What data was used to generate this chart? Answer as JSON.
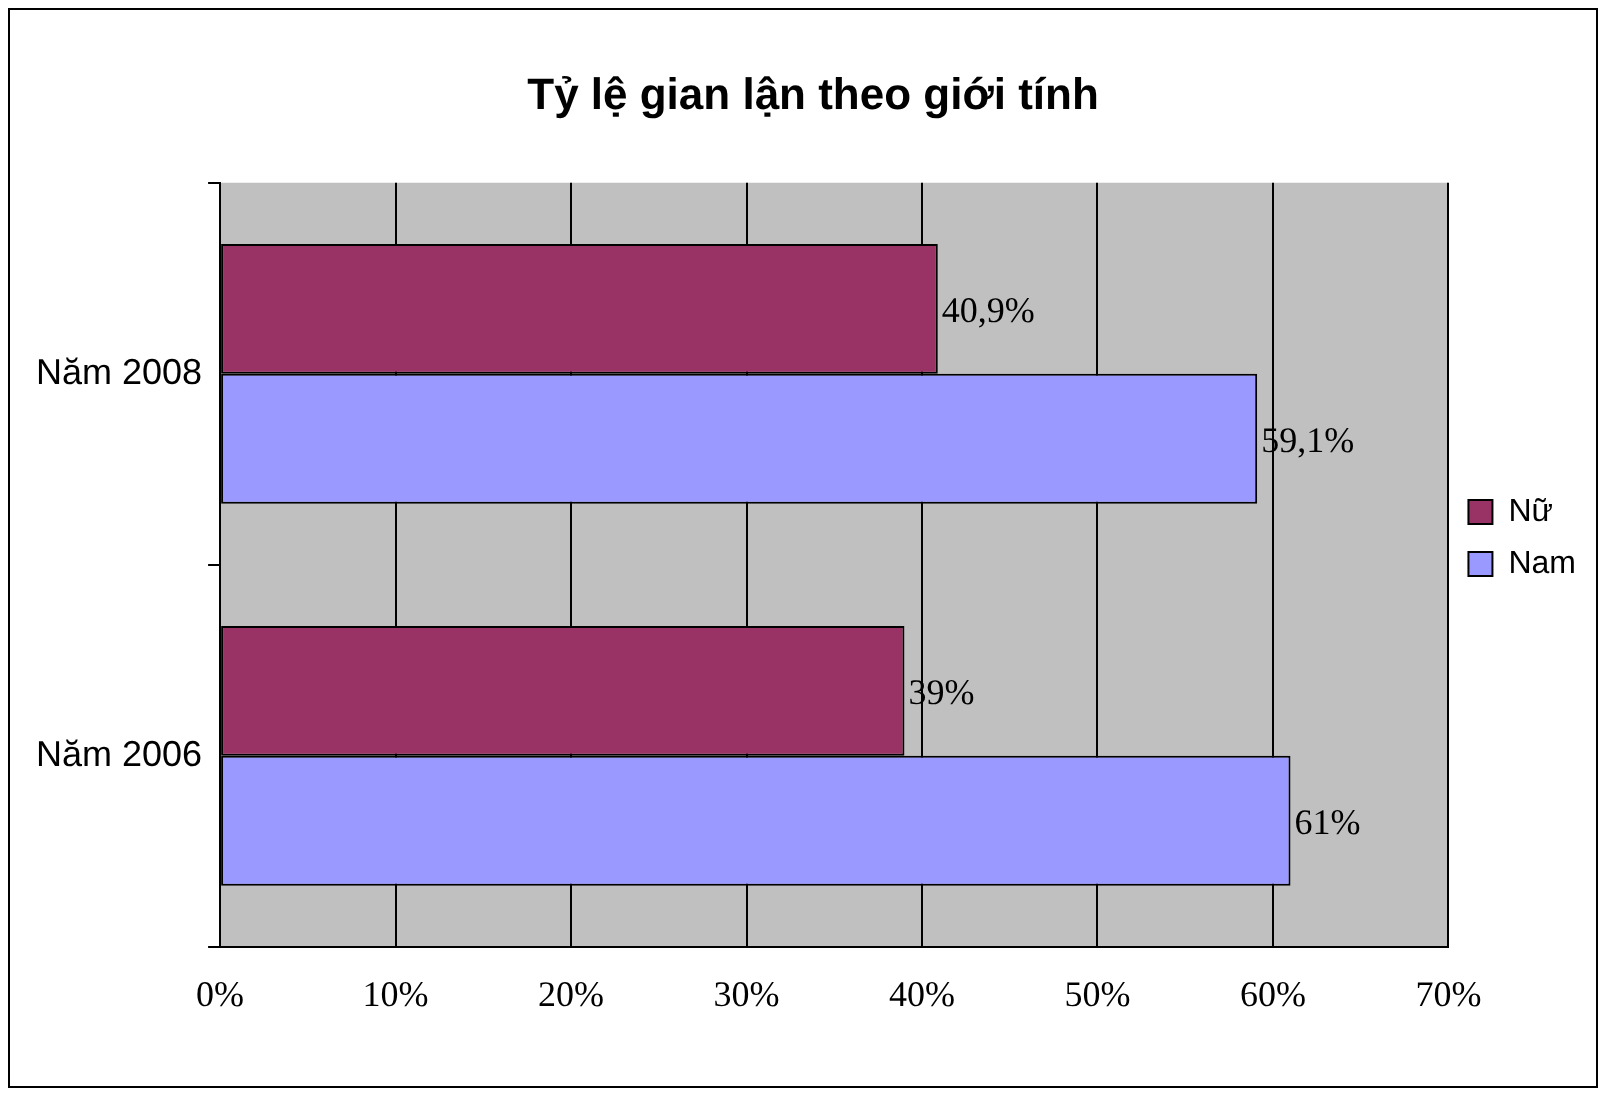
{
  "chart_data": {
    "type": "bar",
    "orientation": "horizontal",
    "title": "Tỷ lệ gian lận theo giới tính",
    "categories": [
      "Năm 2008",
      "Năm 2006"
    ],
    "series": [
      {
        "name": "Nữ",
        "color": "#993366",
        "values": [
          40.9,
          39
        ],
        "value_labels": [
          "40,9%",
          "39%"
        ]
      },
      {
        "name": "Nam",
        "color": "#9999ff",
        "values": [
          59.1,
          61
        ],
        "value_labels": [
          "59,1%",
          "61%"
        ]
      }
    ],
    "xlim": [
      0,
      70
    ],
    "xticks": [
      {
        "value": 0,
        "label": "0%"
      },
      {
        "value": 10,
        "label": "10%"
      },
      {
        "value": 20,
        "label": "20%"
      },
      {
        "value": 30,
        "label": "30%"
      },
      {
        "value": 40,
        "label": "40%"
      },
      {
        "value": 50,
        "label": "50%"
      },
      {
        "value": 60,
        "label": "60%"
      },
      {
        "value": 70,
        "label": "70%"
      }
    ],
    "grid": "x",
    "legend": "right"
  }
}
